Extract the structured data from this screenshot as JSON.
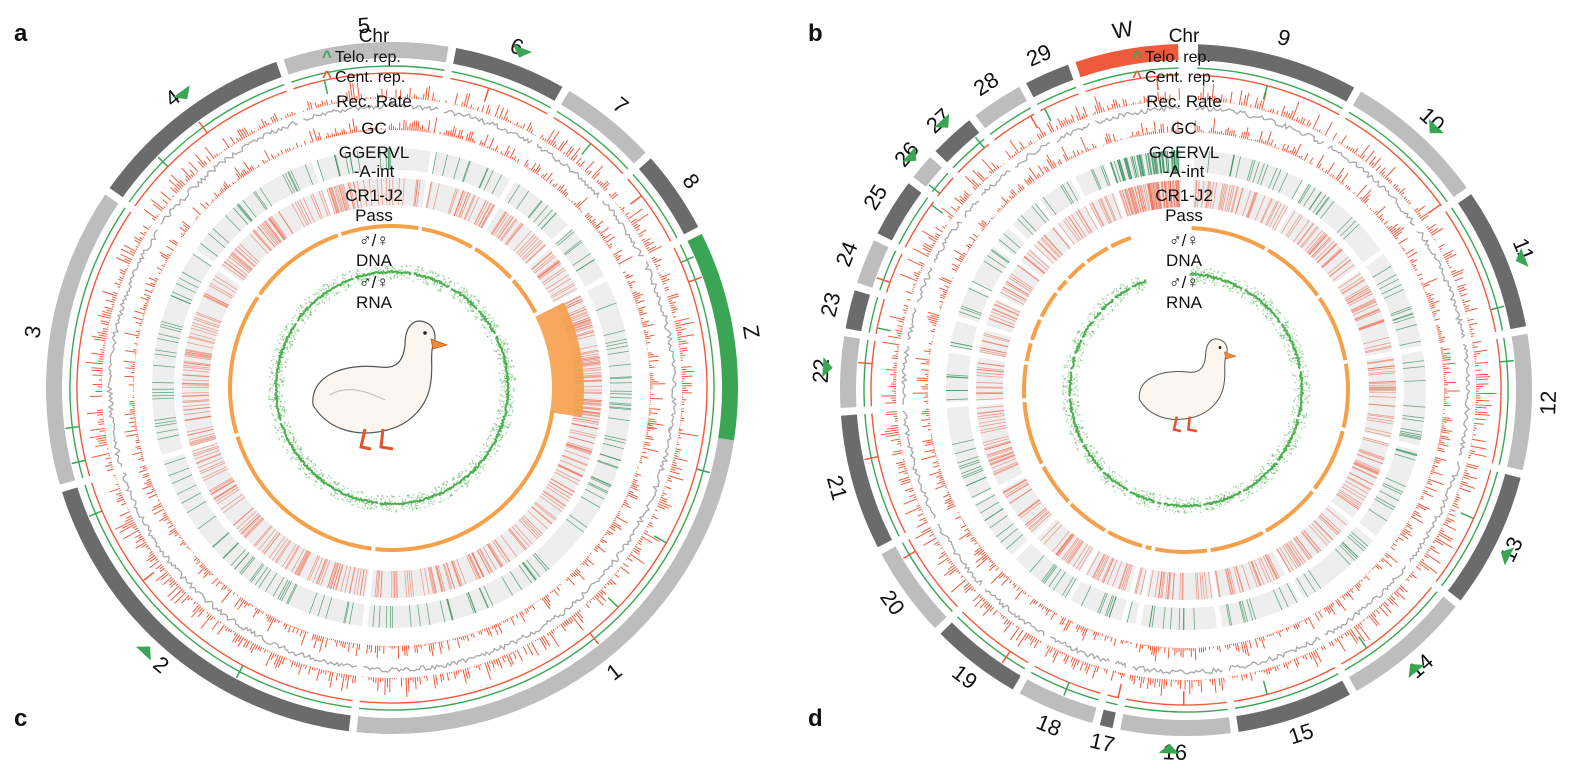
{
  "panel_labels": {
    "a": "a",
    "b": "b",
    "c": "c",
    "d": "d"
  },
  "track_labels": {
    "chr": "Chr",
    "telo": "Telo. rep.",
    "cent": "Cent. rep.",
    "rec": "Rec. Rate",
    "gc": "GC",
    "ggervl1": "GGERVL",
    "ggervl2": "-A-int",
    "cr1_1": "CR1-J2",
    "cr1_2": "Pass",
    "sex": "♂/♀",
    "dna": "DNA",
    "rna": "RNA"
  },
  "colors": {
    "chr_dark": "#6b6b6b",
    "chr_light": "#bdbdbd",
    "chr_z": "#3aa655",
    "chr_w": "#f05a3c",
    "telo": "#3aa655",
    "cent": "#f05a3c",
    "gc_line": "#a8a8a8",
    "rec_bar": "#f05a3c",
    "ggervl": "#2e8b57",
    "cr1": "#f05a3c",
    "dna": "#f5a04a",
    "rna": "#4caf50",
    "track_bg": "#eeeeee"
  },
  "left_chromosomes": [
    {
      "name": "1",
      "span": 70,
      "tone": "light",
      "marker": false
    },
    {
      "name": "2",
      "span": 52,
      "tone": "dark",
      "marker": true
    },
    {
      "name": "3",
      "span": 40,
      "tone": "light",
      "marker": false
    },
    {
      "name": "4",
      "span": 28,
      "tone": "dark",
      "marker": true
    },
    {
      "name": "5",
      "span": 22,
      "tone": "light",
      "marker": false
    },
    {
      "name": "6",
      "span": 15,
      "tone": "dark",
      "marker": true
    },
    {
      "name": "7",
      "span": 13,
      "tone": "light",
      "marker": false
    },
    {
      "name": "8",
      "span": 11,
      "tone": "dark",
      "marker": false
    },
    {
      "name": "Z",
      "span": 28,
      "tone": "z",
      "marker": false
    }
  ],
  "right_chromosomes": [
    {
      "name": "9",
      "span": 25,
      "tone": "dark",
      "marker": false
    },
    {
      "name": "10",
      "span": 22,
      "tone": "light",
      "marker": true
    },
    {
      "name": "11",
      "span": 22,
      "tone": "dark",
      "marker": true
    },
    {
      "name": "12",
      "span": 21,
      "tone": "light",
      "marker": false
    },
    {
      "name": "13",
      "span": 21,
      "tone": "dark",
      "marker": true
    },
    {
      "name": "14",
      "span": 20,
      "tone": "light",
      "marker": true
    },
    {
      "name": "15",
      "span": 18,
      "tone": "dark",
      "marker": false
    },
    {
      "name": "16",
      "span": 17,
      "tone": "light",
      "marker": true
    },
    {
      "name": "17",
      "span": 2,
      "tone": "dark",
      "marker": false
    },
    {
      "name": "18",
      "span": 12,
      "tone": "light",
      "marker": false
    },
    {
      "name": "19",
      "span": 14,
      "tone": "dark",
      "marker": false
    },
    {
      "name": "20",
      "span": 14,
      "tone": "light",
      "marker": false
    },
    {
      "name": "21",
      "span": 21,
      "tone": "dark",
      "marker": false
    },
    {
      "name": "22",
      "span": 11,
      "tone": "light",
      "marker": true
    },
    {
      "name": "23",
      "span": 6,
      "tone": "dark",
      "marker": false
    },
    {
      "name": "24",
      "span": 7,
      "tone": "light",
      "marker": false
    },
    {
      "name": "25",
      "span": 9,
      "tone": "dark",
      "marker": false
    },
    {
      "name": "26",
      "span": 4,
      "tone": "light",
      "marker": true
    },
    {
      "name": "27",
      "span": 7,
      "tone": "dark",
      "marker": true
    },
    {
      "name": "28",
      "span": 8,
      "tone": "light",
      "marker": false
    },
    {
      "name": "29",
      "span": 7,
      "tone": "dark",
      "marker": false
    },
    {
      "name": "W",
      "span": 16,
      "tone": "w",
      "marker": false
    }
  ]
}
